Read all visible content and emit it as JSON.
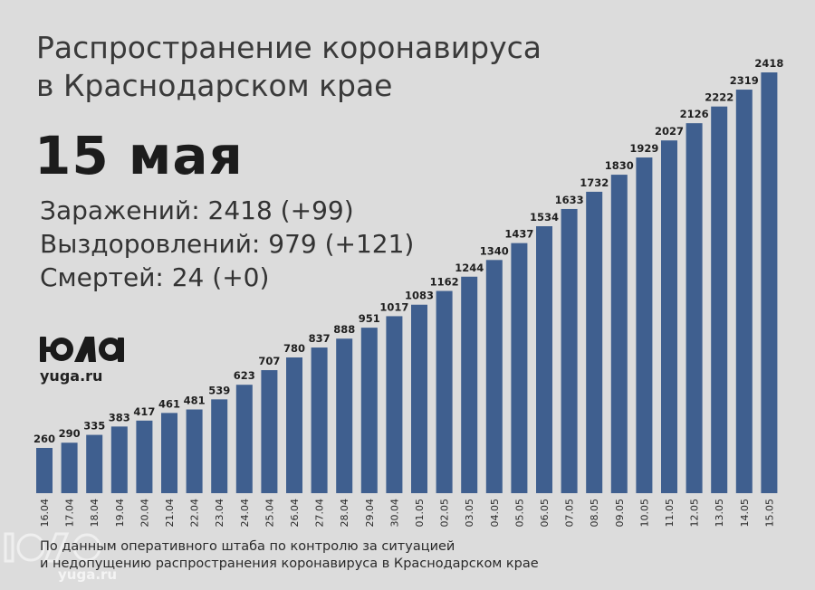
{
  "header": {
    "title_line1": "Распространение коронавируса",
    "title_line2": "в Краснодарском крае",
    "date": "15 мая"
  },
  "stats": {
    "infected": "Заражений: 2418 (+99)",
    "recovered": "Выздоровлений: 979 (+121)",
    "deaths": "Смертей: 24 (+0)"
  },
  "logo": {
    "site": "yuga.ru",
    "watermark_site": "yuga.ru"
  },
  "footer": {
    "line1": "По данным оперативного штаба по контролю за ситуацией",
    "line2": "и недопущению распространения коронавируса в Краснодарском крае"
  },
  "colors": {
    "bar": "#3f5f8f",
    "background": "#dcdcdc"
  },
  "chart_data": {
    "type": "bar",
    "categories": [
      "16.04",
      "17.04",
      "18.04",
      "19.04",
      "20.04",
      "21.04",
      "22.04",
      "23.04",
      "24.04",
      "25.04",
      "26.04",
      "27.04",
      "28.04",
      "29.04",
      "30.04",
      "01.05",
      "02.05",
      "03.05",
      "04.05",
      "05.05",
      "06.05",
      "07.05",
      "08.05",
      "09.05",
      "10.05",
      "11.05",
      "12.05",
      "13.05",
      "14.05",
      "15.05"
    ],
    "values": [
      260,
      290,
      335,
      383,
      417,
      461,
      481,
      539,
      623,
      707,
      780,
      837,
      888,
      951,
      1017,
      1083,
      1162,
      1244,
      1340,
      1437,
      1534,
      1633,
      1732,
      1830,
      1929,
      2027,
      2126,
      2222,
      2319,
      2418
    ],
    "ylim": [
      0,
      2418
    ],
    "grid": false,
    "tick_label_orientation": "vertical"
  }
}
